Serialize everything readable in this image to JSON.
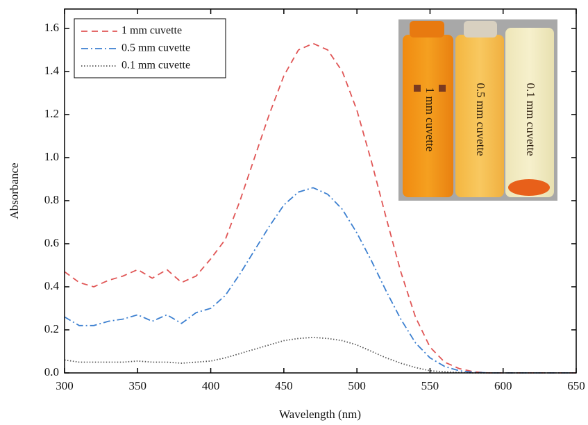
{
  "chart_data": {
    "type": "line",
    "x_label": "Wavelength (nm)",
    "y_label": "Absorbance",
    "x": [
      300,
      310,
      320,
      330,
      340,
      350,
      360,
      370,
      380,
      390,
      400,
      410,
      420,
      430,
      440,
      450,
      460,
      470,
      480,
      490,
      500,
      510,
      520,
      530,
      540,
      550,
      560,
      570,
      580,
      590,
      600,
      610,
      620,
      630,
      640,
      650
    ],
    "series": [
      {
        "name": "1 mm cuvette",
        "color": "#e05555",
        "linestyle": "dashed",
        "values": [
          0.47,
          0.42,
          0.4,
          0.43,
          0.45,
          0.48,
          0.44,
          0.48,
          0.42,
          0.45,
          0.53,
          0.62,
          0.8,
          1.0,
          1.2,
          1.38,
          1.5,
          1.53,
          1.5,
          1.4,
          1.22,
          0.98,
          0.72,
          0.47,
          0.26,
          0.12,
          0.05,
          0.02,
          0.005,
          0,
          0,
          0,
          0,
          0,
          0,
          0
        ]
      },
      {
        "name": "0.5 mm cuvette",
        "color": "#3b7fd0",
        "linestyle": "dashdot",
        "values": [
          0.26,
          0.22,
          0.22,
          0.24,
          0.25,
          0.27,
          0.24,
          0.27,
          0.23,
          0.28,
          0.3,
          0.36,
          0.46,
          0.57,
          0.68,
          0.78,
          0.84,
          0.86,
          0.83,
          0.76,
          0.65,
          0.52,
          0.38,
          0.25,
          0.14,
          0.07,
          0.03,
          0.01,
          0.003,
          0,
          0,
          0,
          0,
          0,
          0,
          0
        ]
      },
      {
        "name": "0.1 mm cuvette",
        "color": "#555555",
        "linestyle": "dotted",
        "values": [
          0.06,
          0.05,
          0.05,
          0.05,
          0.05,
          0.055,
          0.05,
          0.05,
          0.045,
          0.05,
          0.055,
          0.07,
          0.09,
          0.11,
          0.13,
          0.15,
          0.16,
          0.165,
          0.16,
          0.15,
          0.13,
          0.1,
          0.07,
          0.045,
          0.025,
          0.01,
          0.005,
          0.002,
          0,
          0,
          0,
          0,
          0,
          0,
          0,
          0
        ]
      }
    ],
    "xlim": [
      300,
      650
    ],
    "xticks": [
      300,
      350,
      400,
      450,
      500,
      550,
      600,
      650
    ],
    "ylim": [
      0,
      1.69
    ],
    "yticks": [
      {
        "value": 0,
        "label": "0.0"
      },
      {
        "value": 0.2,
        "label": "0.2"
      },
      {
        "value": 0.4,
        "label": "0.4"
      },
      {
        "value": 0.6,
        "label": "0.6"
      },
      {
        "value": 0.8,
        "label": "0.8"
      },
      {
        "value": 1.0,
        "label": "1.0"
      },
      {
        "value": 1.2,
        "label": "1.2"
      },
      {
        "value": 1.4,
        "label": "1.4"
      },
      {
        "value": 1.6,
        "label": "1.6"
      }
    ],
    "legend": "upper left",
    "inset_labels": [
      "1 mm cuvette",
      "0.5 mm cuvette",
      "0.1 mm cuvette"
    ]
  }
}
